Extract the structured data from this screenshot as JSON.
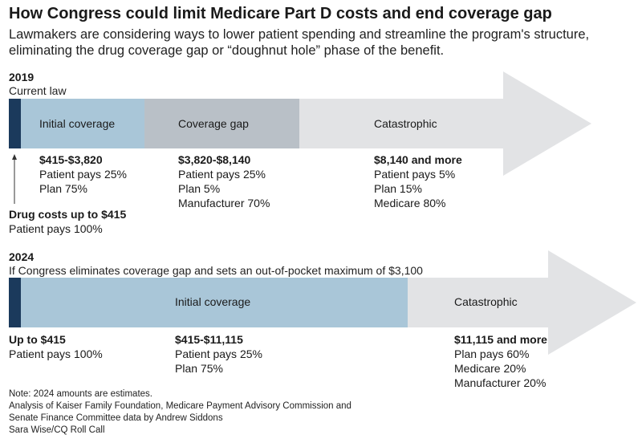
{
  "title": "How Congress could limit Medicare Part D costs and end coverage gap",
  "subtitle": [
    "Lawmakers are considering ways to lower patient spending and streamline the program's structure,",
    "eliminating the drug coverage gap or “doughnut hole” phase of the benefit."
  ],
  "colors": {
    "dark_blue": "#1b3a5c",
    "light_blue": "#a9c6d8",
    "gray_segment": "#b9c0c7",
    "arrow_gray": "#e2e3e5"
  },
  "y2019": {
    "year": "2019",
    "scenario": "Current law",
    "segments": {
      "initial": "Initial coverage",
      "gap": "Coverage gap",
      "catastrophic": "Catastrophic"
    },
    "initial_block": [
      "$415-$3,820",
      "Patient pays 25%",
      "Plan 75%"
    ],
    "gap_block": [
      "$3,820-$8,140",
      "Patient pays 25%",
      "Plan 5%",
      "Manufacturer 70%"
    ],
    "cat_block": [
      "$8,140 and more",
      "Patient pays 5%",
      "Plan 15%",
      "Medicare 80%"
    ],
    "deductible_block": [
      "Drug costs up to $415",
      "Patient pays 100%"
    ]
  },
  "y2024": {
    "year": "2024",
    "scenario": "If Congress eliminates coverage gap and sets an out-of-pocket maximum of $3,100",
    "segments": {
      "initial": "Initial coverage",
      "catastrophic": "Catastrophic"
    },
    "deductible_block": [
      "Up to $415",
      "Patient pays 100%"
    ],
    "initial_block": [
      "$415-$11,115",
      "Patient pays 25%",
      "Plan 75%"
    ],
    "cat_block": [
      "$11,115 and more",
      "Plan pays 60%",
      "Medicare 20%",
      "Manufacturer 20%"
    ]
  },
  "notes": [
    "Note: 2024 amounts are estimates.",
    "Analysis of Kaiser Family Foundation, Medicare Payment Advisory Commission and",
    "Senate Finance Committee data by Andrew Siddons",
    "Sara Wise/CQ Roll Call"
  ]
}
